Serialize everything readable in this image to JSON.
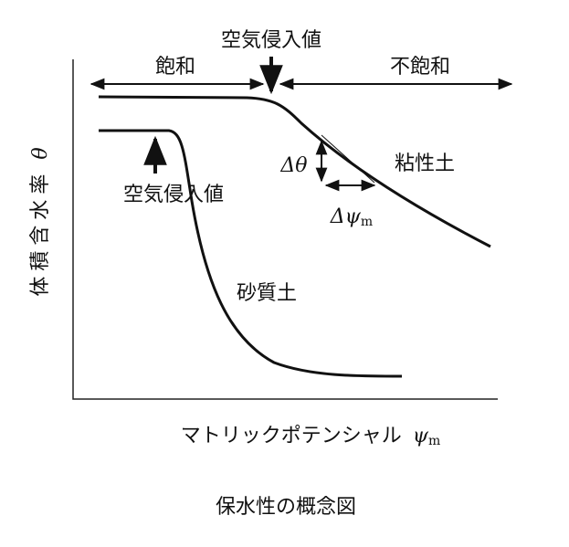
{
  "diagram": {
    "title": "保水性の概念図",
    "y_axis": {
      "label": "体積含水率",
      "symbol": "θ"
    },
    "x_axis": {
      "label": "マトリックポテンシャル",
      "symbol": "ψ",
      "subscript": "m"
    },
    "regions": {
      "saturated": "飽和",
      "unsaturated": "不飽和",
      "top_air_entry": "空気侵入値"
    },
    "clay": {
      "label": "粘性土",
      "delta_theta": "Δθ",
      "delta_psi": "Δψ",
      "delta_psi_subscript": "m"
    },
    "sand": {
      "label": "砂質土",
      "air_entry": "空気侵入値"
    }
  }
}
